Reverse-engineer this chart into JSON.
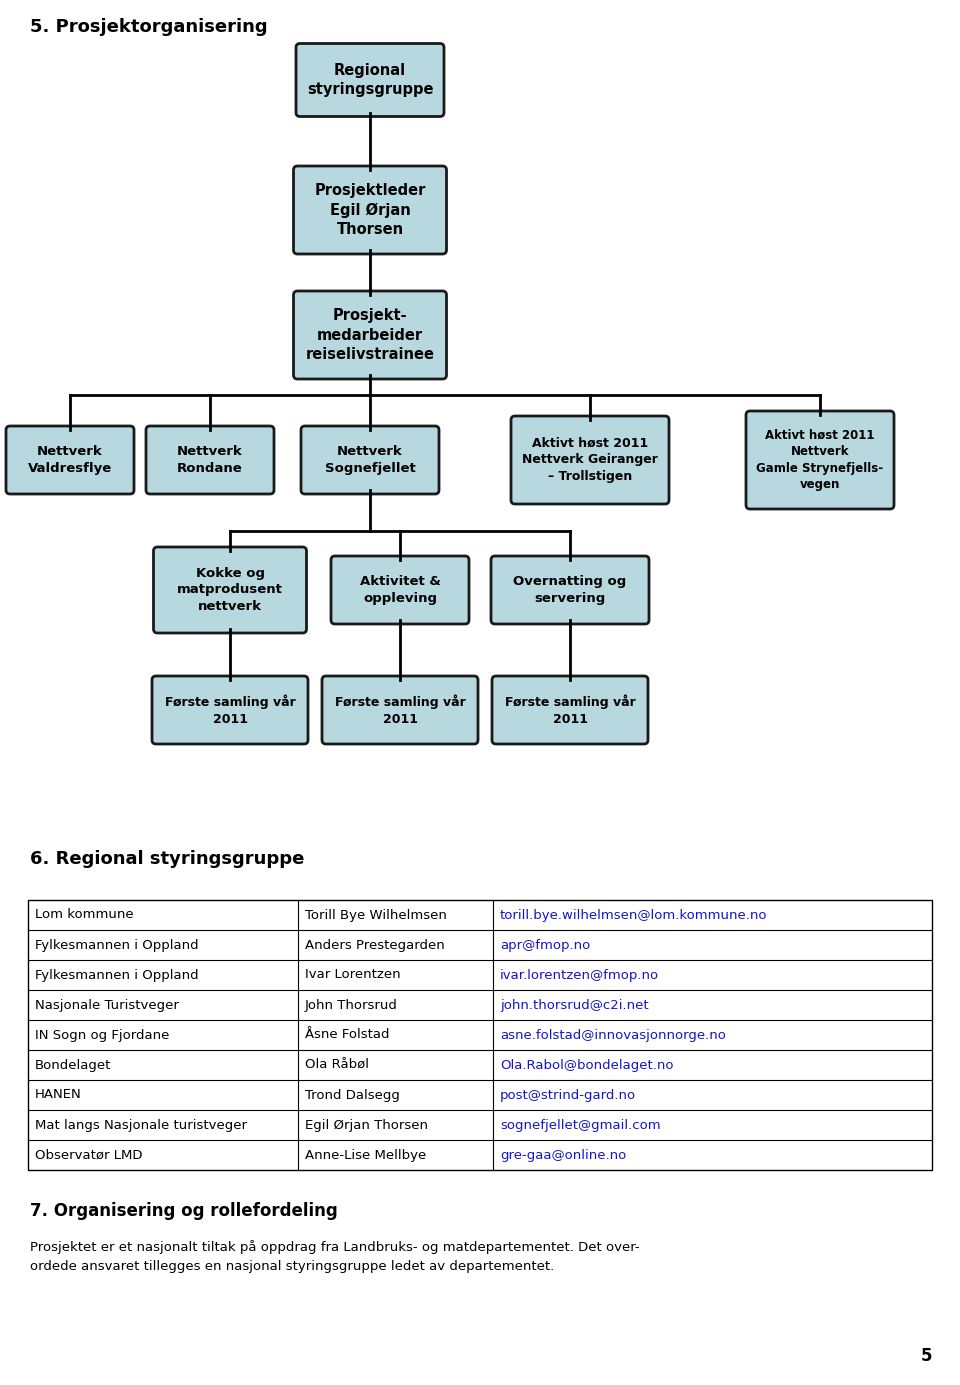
{
  "title1": "5. Prosjektorganisering",
  "section2_title": "6. Regional styringsgruppe",
  "section3_title": "7. Organisering og rollefordeling",
  "section3_text": "Prosjektet er et nasjonalt tiltak på oppdrag fra Landbruks- og matdepartementet. Det over-\nordede ansvaret tillegges en nasjonal styringsgruppe ledet av departementet.",
  "box_color": "#b8d8e0",
  "box_edge_color": "#1a1a1a",
  "page_num": "5",
  "labels": {
    "regional": "Regional\nstyringsgruppe",
    "prosjektleder": "Prosjektleder\nEgil Ørjan\nThorsen",
    "prosjektmed": "Prosjekt-\nmedarbeider\nreiselivstrainee",
    "nettverk_vald": "Nettverk\nValdresflye",
    "nettverk_rond": "Nettverk\nRondane",
    "nettverk_sogn": "Nettverk\nSognefjellet",
    "aktivt_geir": "Aktivt høst 2011\nNettverk Geiranger\n– Trollstigen",
    "aktivt_stryn": "Aktivt høst 2011\nNettverk\nGamle Strynefjells-\nvegen",
    "kokke": "Kokke og\nmatprodusent\nnettverk",
    "aktivitet": "Aktivitet &\noppleving",
    "overnatting": "Overnatting og\nservering",
    "forste1": "Første samling vår\n2011",
    "forste2": "Første samling vår\n2011",
    "forste3": "Første samling vår\n2011"
  },
  "table_rows": [
    [
      "Lom kommune",
      "Torill Bye Wilhelmsen",
      "torill.bye.wilhelmsen@lom.kommune.no"
    ],
    [
      "Fylkesmannen i Oppland",
      "Anders Prestegarden",
      "apr@fmop.no"
    ],
    [
      "Fylkesmannen i Oppland",
      "Ivar Lorentzen",
      "ivar.lorentzen@fmop.no"
    ],
    [
      "Nasjonale Turistveger",
      "John Thorsrud",
      "john.thorsrud@c2i.net"
    ],
    [
      "IN Sogn og Fjordane",
      "Åsne Folstad",
      "asne.folstad@innovasjonnorge.no"
    ],
    [
      "Bondelaget",
      "Ola Råbøl",
      "Ola.Rabol@bondelaget.no"
    ],
    [
      "HANEN",
      "Trond Dalsegg",
      "post@strind-gard.no"
    ],
    [
      "Mat langs Nasjonale turistveger",
      "Egil Ørjan Thorsen",
      "sognefjellet@gmail.com"
    ],
    [
      "Observatør LMD",
      "Anne-Lise Mellbye",
      "gre-gaa@online.no"
    ]
  ]
}
